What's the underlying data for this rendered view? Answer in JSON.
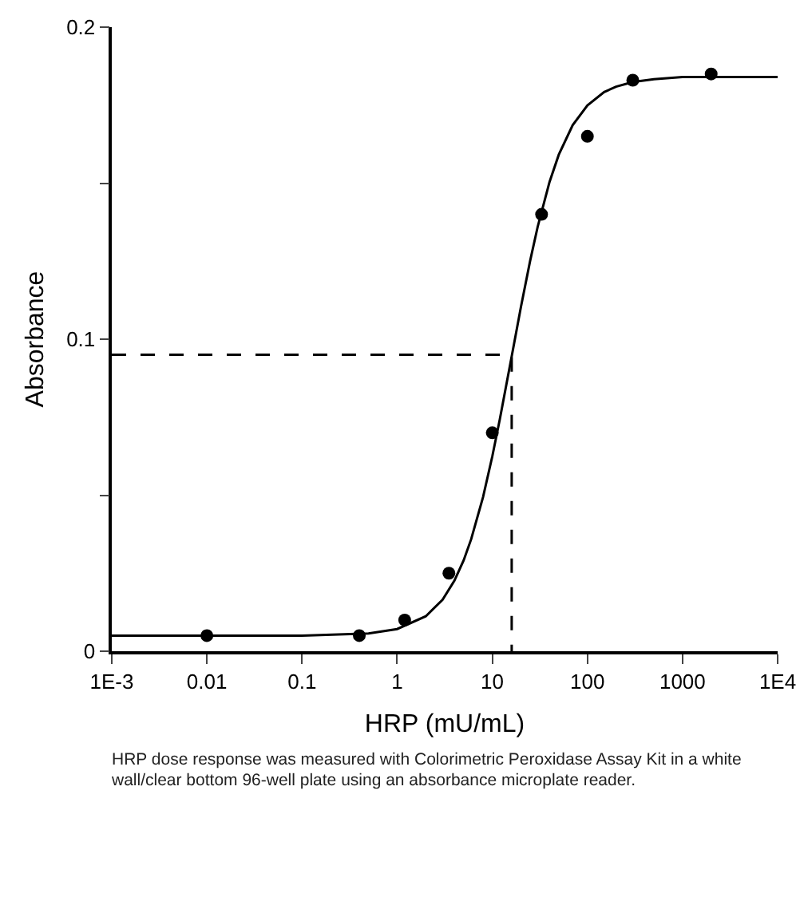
{
  "chart_data": {
    "type": "scatter",
    "xlabel": "HRP (mU/mL)",
    "ylabel": "Absorbance",
    "log": "x",
    "xlim": [
      0.001,
      10000
    ],
    "xticks": [
      {
        "value": 0.001,
        "label": "1E-3"
      },
      0.01,
      0.1,
      1,
      10,
      100,
      1000,
      {
        "value": 10000,
        "label": "1E4"
      }
    ],
    "ylim": [
      0,
      0.2
    ],
    "yticks": [
      0,
      {
        "value": 0.05,
        "label": null
      },
      0.1,
      {
        "value": 0.15,
        "label": null
      },
      0.2
    ],
    "grid": false,
    "series": [
      {
        "marker": "circle",
        "color": "#000000",
        "x": [
          0.01,
          0.4,
          1.2,
          3.5,
          10,
          33,
          100,
          300,
          2000
        ],
        "values": [
          0.005,
          0.005,
          0.01,
          0.025,
          0.07,
          0.14,
          0.165,
          0.183,
          0.185
        ]
      },
      {
        "type": "line",
        "color": "#000000",
        "line_style": "solid",
        "x": [
          0.001,
          0.1,
          0.5,
          1,
          2,
          3,
          4,
          5,
          6,
          8,
          10,
          12,
          16,
          20,
          25,
          30,
          40,
          50,
          70,
          100,
          150,
          200,
          300,
          500,
          1000,
          10000
        ],
        "values": [
          0.005,
          0.005,
          0.0057,
          0.0071,
          0.0112,
          0.0165,
          0.0226,
          0.0291,
          0.0359,
          0.0494,
          0.0624,
          0.0743,
          0.0945,
          0.1103,
          0.1251,
          0.136,
          0.1504,
          0.1591,
          0.1686,
          0.1749,
          0.1792,
          0.1809,
          0.1824,
          0.1833,
          0.184,
          0.184
        ]
      },
      {
        "type": "line",
        "color": "#000000",
        "line_style": "dashed",
        "x": [
          0.001,
          16,
          16
        ],
        "values": [
          0.095,
          0.095,
          0
        ]
      }
    ],
    "annotations": [
      "HRP dose response was measured with Colorimetric Peroxidase Assay Kit in a white wall/clear bottom 96-well plate using an absorbance microplate reader."
    ]
  }
}
